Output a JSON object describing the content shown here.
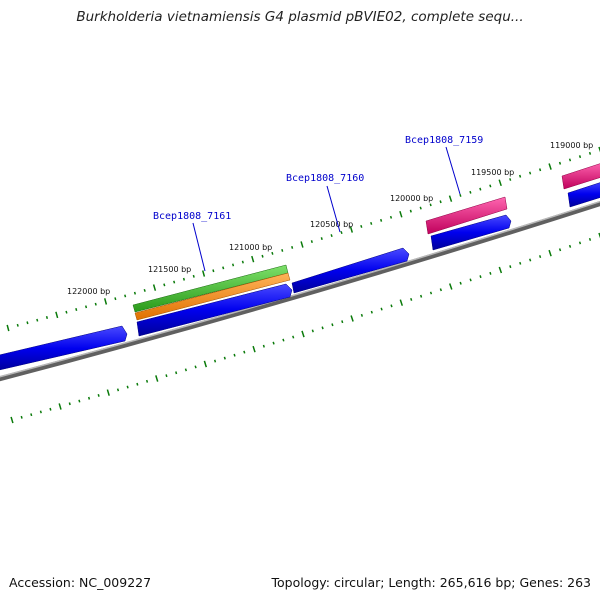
{
  "title": "Burkholderia vietnamiensis G4 plasmid pBVIE02, complete sequ...",
  "footer": {
    "accession": "Accession: NC_009227",
    "summary": "Topology: circular; Length: 265,616 bp; Genes: 263"
  },
  "colors": {
    "backbone": "#808080",
    "tick": "#0a7a0a",
    "cds": "#0000ee",
    "gene_green": "#33bb22",
    "gene_orange": "#ff8c1a",
    "gene_pink": "#e8107a",
    "label_blue": "#0000cc"
  },
  "scale_labels": [
    {
      "text": "122000 bp"
    },
    {
      "text": "121500 bp"
    },
    {
      "text": "121000 bp"
    },
    {
      "text": "120500 bp"
    },
    {
      "text": "120000 bp"
    },
    {
      "text": "119500 bp"
    },
    {
      "text": "119000 bp"
    }
  ],
  "gene_labels": [
    {
      "text": "Bcep1808_7161"
    },
    {
      "text": "Bcep1808_7160"
    },
    {
      "text": "Bcep1808_7159"
    }
  ]
}
